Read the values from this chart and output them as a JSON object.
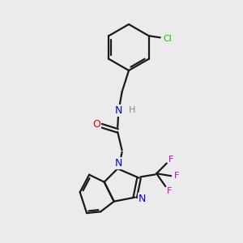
{
  "background_color": "#ebebeb",
  "bond_color": "#1a1a1a",
  "nitrogen_color": "#0000ee",
  "oxygen_color": "#dd0000",
  "chlorine_color": "#22bb00",
  "fluorine_color": "#cc00cc",
  "hydrogen_color": "#888888",
  "figsize": [
    3.0,
    3.0
  ],
  "dpi": 100,
  "xlim": [
    0,
    10
  ],
  "ylim": [
    0,
    10
  ]
}
